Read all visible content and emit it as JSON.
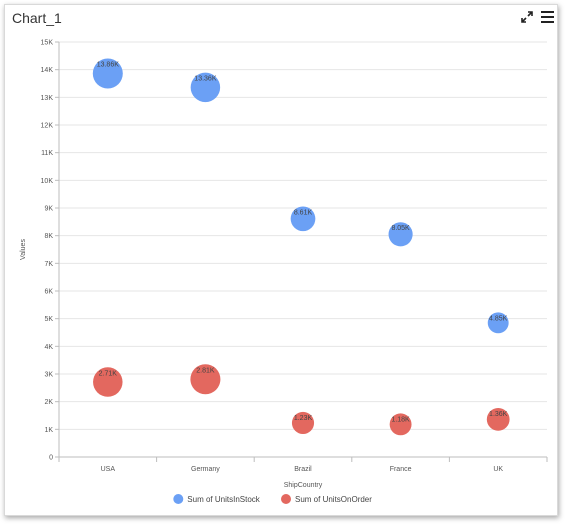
{
  "title": "Chart_1",
  "toolbar": {
    "expand_icon": "expand-arrows-icon",
    "menu_icon": "hamburger-menu-icon"
  },
  "chart_data": {
    "type": "scatter",
    "xlabel": "ShipCountry",
    "ylabel": "Values",
    "categories": [
      "USA",
      "Germany",
      "Brazil",
      "France",
      "UK"
    ],
    "ylim": [
      0,
      15000
    ],
    "yticks": [
      "0",
      "1K",
      "2K",
      "3K",
      "4K",
      "5K",
      "6K",
      "7K",
      "8K",
      "9K",
      "10K",
      "11K",
      "12K",
      "13K",
      "14K",
      "15K"
    ],
    "grid": true,
    "legend_position": "bottom",
    "series": [
      {
        "name": "Sum of UnitsInStock",
        "color": "#6ba0f5",
        "values": [
          13860,
          13360,
          8610,
          8050,
          4850
        ],
        "labels": [
          "13.86K",
          "13.36K",
          "8.61K",
          "8.05K",
          "4.85K"
        ]
      },
      {
        "name": "Sum of UnitsOnOrder",
        "color": "#e3685f",
        "values": [
          2710,
          2810,
          1230,
          1180,
          1360
        ],
        "labels": [
          "2.71K",
          "2.81K",
          "1.23K",
          "1.18K",
          "1.36K"
        ]
      }
    ]
  }
}
